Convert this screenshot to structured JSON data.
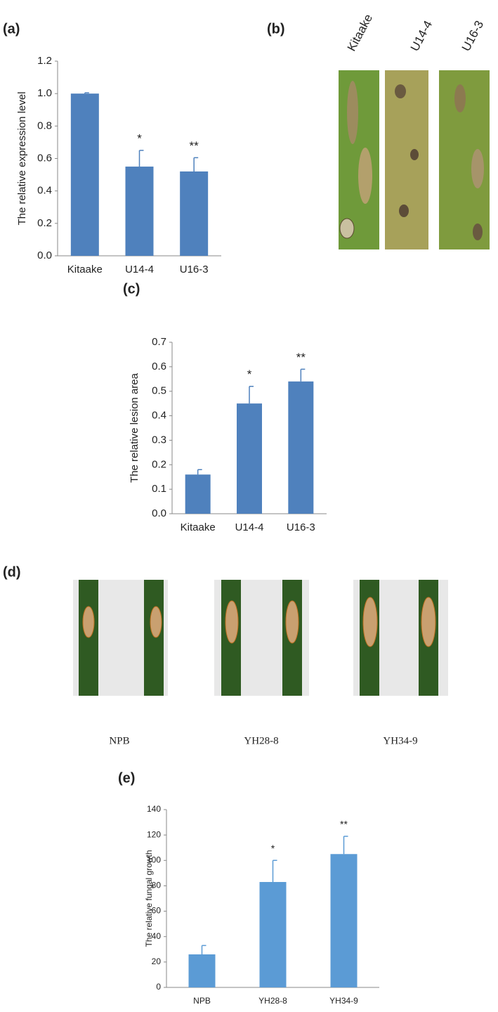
{
  "panel_labels": [
    "(a)",
    "(b)",
    "(c)",
    "(d)",
    "(e)"
  ],
  "photo_b_labels": [
    "Kitaake",
    "U14-4",
    "U16-3"
  ],
  "photo_d_labels": [
    "NPB",
    "YH28-8",
    "YH34-9"
  ],
  "chart_data": [
    {
      "type": "bar",
      "y_label": "The relative expression level",
      "categories": [
        "Kitaake",
        "U14-4",
        "U16-3"
      ],
      "values": [
        1.0,
        0.55,
        0.52
      ],
      "errors": [
        0.005,
        0.1,
        0.085
      ],
      "annotations": [
        null,
        "*",
        "**"
      ],
      "color": "#4f81bd",
      "ylim": [
        0,
        1.2
      ],
      "yticks": [
        {
          "value": 0,
          "label": "0.0"
        },
        0.2,
        0.4,
        0.6,
        0.8,
        {
          "value": 1,
          "label": "1.0"
        },
        1.2
      ]
    },
    {
      "type": "bar",
      "y_label": "The relative lesion area",
      "categories": [
        "Kitaake",
        "U14-4",
        "U16-3"
      ],
      "values": [
        0.16,
        0.45,
        0.54
      ],
      "errors": [
        0.02,
        0.07,
        0.05
      ],
      "annotations": [
        null,
        "*",
        "**"
      ],
      "color": "#4f81bd",
      "ylim": [
        0,
        0.7
      ],
      "yticks": [
        {
          "value": 0,
          "label": "0.0"
        },
        0.1,
        0.2,
        0.3,
        0.4,
        0.5,
        0.6,
        0.7
      ]
    },
    {
      "type": "bar",
      "y_label": "The relative fungal growth",
      "categories": [
        "NPB",
        "YH28-8",
        "YH34-9"
      ],
      "values": [
        26,
        83,
        105
      ],
      "errors": [
        7,
        17,
        14
      ],
      "annotations": [
        null,
        "*",
        "**"
      ],
      "color": "#5b9bd5",
      "ylim": [
        0,
        140
      ],
      "yticks": [
        0,
        20,
        40,
        60,
        80,
        100,
        120,
        140
      ]
    }
  ]
}
